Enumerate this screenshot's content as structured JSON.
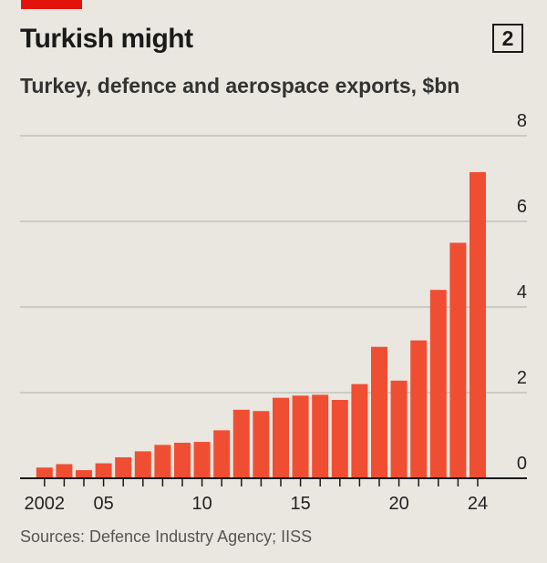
{
  "header": {
    "title": "Turkish might",
    "badge": "2",
    "accent_color": "#e3120b"
  },
  "footer": {
    "source": "Sources: Defence Industry Agency; IISS"
  },
  "chart_data": {
    "type": "bar",
    "title": "Turkish might",
    "subtitle": "Turkey, defence and aerospace exports, $bn",
    "xlabel": "",
    "ylabel": "",
    "categories": [
      "2002",
      "2003",
      "2004",
      "2005",
      "2006",
      "2007",
      "2008",
      "2009",
      "2010",
      "2011",
      "2012",
      "2013",
      "2014",
      "2015",
      "2016",
      "2017",
      "2018",
      "2019",
      "2020",
      "2021",
      "2022",
      "2023",
      "2024"
    ],
    "values": [
      0.25,
      0.33,
      0.19,
      0.35,
      0.49,
      0.63,
      0.78,
      0.83,
      0.85,
      1.12,
      1.6,
      1.57,
      1.88,
      1.93,
      1.95,
      1.83,
      2.2,
      3.07,
      2.28,
      3.22,
      4.4,
      5.5,
      7.15
    ],
    "ylim": [
      0,
      8
    ],
    "yticks": [
      0,
      2,
      4,
      6,
      8
    ],
    "xtick_labels": [
      {
        "label": "2002",
        "year": "2002"
      },
      {
        "label": "05",
        "year": "2005"
      },
      {
        "label": "10",
        "year": "2010"
      },
      {
        "label": "15",
        "year": "2015"
      },
      {
        "label": "20",
        "year": "2020"
      },
      {
        "label": "24",
        "year": "2024"
      }
    ],
    "bar_color": "#f04e33",
    "grid": true,
    "y_axis_side": "right"
  }
}
